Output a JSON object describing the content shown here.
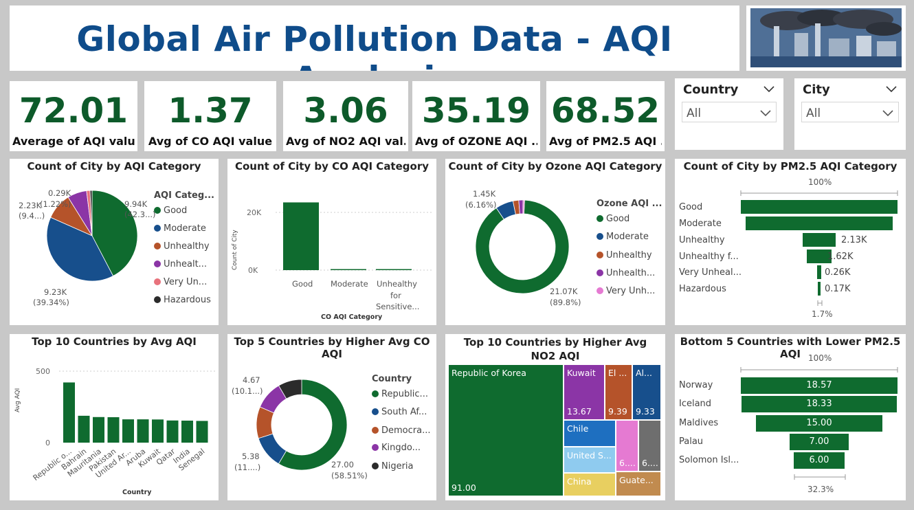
{
  "header": {
    "title": "Global Air Pollution Data - AQI Analysis",
    "image_icon": "factory-pollution-image"
  },
  "kpis": [
    {
      "value": "72.01",
      "label": "Average of AQI value"
    },
    {
      "value": "1.37",
      "label": "Avg of CO AQI value"
    },
    {
      "value": "3.06",
      "label": "Avg of NO2 AQI val..."
    },
    {
      "value": "35.19",
      "label": "Avg of OZONE AQI ..."
    },
    {
      "value": "68.52",
      "label": "Avg of PM2.5 AQI ..."
    }
  ],
  "slicers": {
    "country": {
      "title": "Country",
      "value": "All"
    },
    "city": {
      "title": "City",
      "value": "All"
    }
  },
  "colors": {
    "green": "#0f6b2f",
    "blue": "#174f8c",
    "orange": "#b5532a",
    "purple": "#8b35a6",
    "pink": "#e8727c",
    "black": "#2b2b2b",
    "ltpink": "#e57ad2",
    "skyblue": "#8fcbef",
    "yellow": "#e8cf60",
    "brown": "#c18b4f",
    "gray": "#6e6e6e",
    "midblue": "#1e6fc0"
  },
  "charts": {
    "aqi_pie": {
      "title": "Count of City by AQI Category",
      "legend_title": "AQI Categ...",
      "legend": [
        "Good",
        "Moderate",
        "Unhealthy",
        "Unhealt...",
        "Very Un...",
        "Hazardous"
      ],
      "labels": {
        "good_a": "9.94K",
        "good_b": "(42.3...)",
        "mod_a": "9.23K",
        "mod_b": "(39.34%)",
        "unh_a": "2.23K",
        "unh_b": "(9.4...)",
        "vu_a": "0.29K",
        "vu_b": "(1.22%)"
      }
    },
    "co_bar": {
      "title": "Count of City by CO AQI Category",
      "ylabel": "Count of City",
      "xlabel": "CO AQI Category",
      "yticks": [
        "20K",
        "0K"
      ],
      "cats": [
        "Good",
        "Moderate",
        "Unhealthy",
        "for",
        "Sensitive..."
      ]
    },
    "ozone_donut": {
      "title": "Count of City by Ozone AQI Category",
      "legend_title": "Ozone AQI ...",
      "legend": [
        "Good",
        "Moderate",
        "Unhealthy",
        "Unhealth...",
        "Very Unh..."
      ],
      "labels": {
        "a": "1.45K",
        "b": "(6.16%)",
        "c": "21.07K",
        "d": "(89.8%)"
      }
    },
    "pm25_funnel": {
      "title": "Count of City by PM2.5 AQI Category",
      "top_pct": "100%",
      "bottom_pct": "1.7%",
      "cats": [
        "Good",
        "Moderate",
        "Unhealthy",
        "Unhealthy f...",
        "Very Unheal...",
        "Hazardous"
      ],
      "values": [
        "",
        "",
        "2.13K",
        "1.62K",
        "0.26K",
        "0.17K"
      ]
    },
    "top10_bar": {
      "title": "Top 10 Countries by Avg AQI",
      "ylabel": "Avg AQI",
      "xlabel": "Country",
      "yticks": [
        "500",
        "0"
      ],
      "cats": [
        "Republic o...",
        "Bahrain",
        "Mauritania",
        "Pakistan",
        "United Ar...",
        "Aruba",
        "Kuwait",
        "Qatar",
        "India",
        "Senegal"
      ]
    },
    "co_donut": {
      "title": "Top 5 Countries by Higher Avg CO AQI",
      "legend_title": "Country",
      "legend": [
        "Republic...",
        "South Af...",
        "Democra...",
        "Kingdo...",
        "Nigeria"
      ],
      "labels": {
        "a": "4.67",
        "b": "(10.1...)",
        "c": "5.38",
        "d": "(11....)",
        "e": "27.00",
        "f": "(58.51%)"
      }
    },
    "no2_treemap": {
      "title": "Top 10 Countries by Higher Avg NO2 AQI",
      "cells": {
        "korea": "Republic of Korea",
        "korea_v": "91.00",
        "kuwait": "Kuwait",
        "kuwait_v": "13.67",
        "el": "El ...",
        "el_v": "9.39",
        "al": "Al...",
        "al_v": "9.33",
        "chile": "Chile",
        "us": "United S...",
        "pink_v": "6....",
        "gray_v": "6....",
        "china": "China",
        "guate": "Guate..."
      }
    },
    "pm25_bottom": {
      "title": "Bottom 5 Countries with Lower PM2.5 AQI",
      "top_pct": "100%",
      "bottom_pct": "32.3%",
      "cats": [
        "Norway",
        "Iceland",
        "Maldives",
        "Palau",
        "Solomon Isl..."
      ],
      "values": [
        "18.57",
        "18.33",
        "15.00",
        "7.00",
        "6.00"
      ]
    }
  },
  "chart_data": [
    {
      "type": "pie",
      "title": "Count of City by AQI Category",
      "categories": [
        "Good",
        "Moderate",
        "Unhealthy",
        "Unhealthy for Sensitive Groups",
        "Very Unhealthy",
        "Hazardous"
      ],
      "values": [
        9940,
        9230,
        2230,
        1620,
        290,
        170
      ]
    },
    {
      "type": "bar",
      "title": "Count of City by CO AQI Category",
      "categories": [
        "Good",
        "Moderate",
        "Unhealthy for Sensitive..."
      ],
      "values": [
        23460,
        90,
        3
      ],
      "ylabel": "Count of City",
      "xlabel": "CO AQI Category"
    },
    {
      "type": "pie",
      "title": "Count of City by Ozone AQI Category",
      "categories": [
        "Good",
        "Moderate",
        "Unhealthy",
        "Unhealthy for Sensitive Groups",
        "Very Unhealthy"
      ],
      "values": [
        21070,
        1450,
        470,
        350,
        120
      ]
    },
    {
      "type": "bar",
      "title": "Count of City by PM2.5 AQI Category",
      "categories": [
        "Good",
        "Moderate",
        "Unhealthy",
        "Unhealthy f...",
        "Very Unheal...",
        "Hazardous"
      ],
      "values": [
        10000,
        9400,
        2130,
        1620,
        260,
        170
      ]
    },
    {
      "type": "bar",
      "title": "Top 10 Countries by Avg AQI",
      "categories": [
        "Republic o...",
        "Bahrain",
        "Mauritania",
        "Pakistan",
        "United Ar...",
        "Aruba",
        "Kuwait",
        "Qatar",
        "India",
        "Senegal"
      ],
      "values": [
        421,
        188,
        179,
        178,
        163,
        163,
        162,
        155,
        154,
        152
      ],
      "ylabel": "Avg AQI",
      "xlabel": "Country"
    },
    {
      "type": "pie",
      "title": "Top 5 Countries by Higher Avg CO AQI",
      "categories": [
        "Republic...",
        "South Af...",
        "Democra...",
        "Kingdo...",
        "Nigeria"
      ],
      "values": [
        27.0,
        5.38,
        5.2,
        4.67,
        3.9
      ]
    },
    {
      "type": "table",
      "title": "Top 10 Countries by Higher Avg NO2 AQI",
      "categories": [
        "Republic of Korea",
        "Kuwait",
        "El ...",
        "Al...",
        "Chile",
        "United S...",
        "6....",
        "6....",
        "China",
        "Guate..."
      ],
      "values": [
        91.0,
        13.67,
        9.39,
        9.33,
        8.0,
        7.5,
        6.5,
        6.4,
        6.2,
        6.0
      ]
    },
    {
      "type": "bar",
      "title": "Bottom 5 Countries with Lower PM2.5 AQI",
      "categories": [
        "Norway",
        "Iceland",
        "Maldives",
        "Palau",
        "Solomon Isl..."
      ],
      "values": [
        18.57,
        18.33,
        15.0,
        7.0,
        6.0
      ]
    }
  ]
}
